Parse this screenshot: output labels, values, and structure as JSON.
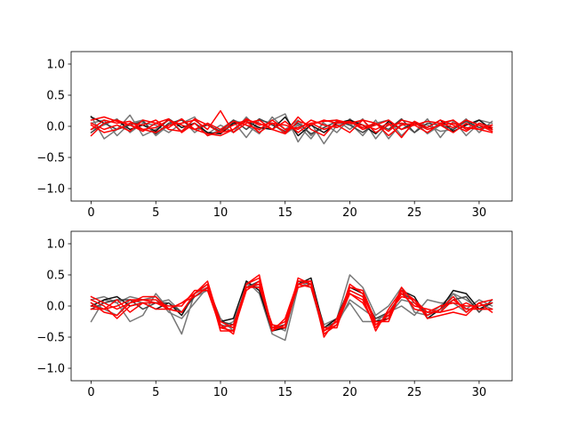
{
  "chart_data": [
    {
      "type": "line",
      "title": "",
      "xlabel": "",
      "ylabel": "",
      "xlim": [
        -1.55,
        32.55
      ],
      "ylim": [
        -1.2,
        1.2
      ],
      "xticks": [
        0,
        5,
        10,
        15,
        20,
        25,
        30
      ],
      "yticks": [
        -1.0,
        -0.5,
        0.0,
        0.5,
        1.0
      ],
      "xtick_labels": [
        "0",
        "5",
        "10",
        "15",
        "20",
        "25",
        "30"
      ],
      "ytick_labels": [
        "−1.0",
        "−0.5",
        "0.0",
        "0.5",
        "1.0"
      ],
      "grid": false,
      "x": [
        0,
        1,
        2,
        3,
        4,
        5,
        6,
        7,
        8,
        9,
        10,
        11,
        12,
        13,
        14,
        15,
        16,
        17,
        18,
        19,
        20,
        21,
        22,
        23,
        24,
        25,
        26,
        27,
        28,
        29,
        30,
        31
      ],
      "series": [
        {
          "color": "#777777",
          "values": [
            0.16,
            -0.2,
            -0.05,
            0.18,
            -0.15,
            -0.05,
            0.1,
            -0.08,
            0.05,
            -0.12,
            0.02,
            -0.1,
            0.15,
            -0.06,
            0.1,
            0.2,
            -0.25,
            0.05,
            -0.28,
            0.02,
            0.05,
            -0.15,
            0.1,
            -0.2,
            0.05,
            -0.1,
            0.12,
            -0.18,
            0.08,
            -0.05,
            0.1,
            0.05
          ]
        },
        {
          "color": "#777777",
          "values": [
            0.05,
            0.1,
            -0.15,
            0.05,
            0.1,
            -0.15,
            0.02,
            0.12,
            -0.1,
            0.05,
            -0.12,
            0.08,
            -0.18,
            0.1,
            0.05,
            -0.12,
            0.02,
            -0.2,
            0.08,
            0.1,
            -0.05,
            0.12,
            -0.2,
            0.05,
            -0.05,
            0.08,
            -0.12,
            0.02,
            0.1,
            -0.15,
            0.05,
            -0.02
          ]
        },
        {
          "color": "#777777",
          "values": [
            -0.05,
            0.02,
            0.12,
            -0.1,
            0.05,
            0.02,
            -0.1,
            0.05,
            0.15,
            -0.15,
            -0.05,
            0.1,
            0.02,
            -0.12,
            0.15,
            -0.05,
            0.1,
            -0.15,
            0.05,
            -0.1,
            0.12,
            -0.05,
            0.05,
            0.1,
            -0.15,
            0.05,
            0.02,
            -0.08,
            -0.05,
            0.12,
            -0.1,
            0.08
          ]
        },
        {
          "color": "#111111",
          "values": [
            0.15,
            0.05,
            0.1,
            -0.05,
            0.02,
            -0.08,
            0.12,
            -0.02,
            0.05,
            -0.1,
            -0.12,
            0.05,
            0.08,
            -0.02,
            -0.05,
            0.15,
            -0.15,
            0.02,
            -0.1,
            0.05,
            0.1,
            0.02,
            -0.12,
            0.08,
            -0.05,
            0.05,
            -0.02,
            0.1,
            -0.08,
            0.02,
            0.1,
            -0.05
          ]
        },
        {
          "color": "#444444",
          "values": [
            -0.1,
            0.05,
            -0.05,
            0.02,
            0.08,
            -0.12,
            0.05,
            0.1,
            -0.05,
            0.02,
            -0.08,
            0.1,
            -0.05,
            0.12,
            0.02,
            -0.08,
            0.05,
            -0.12,
            -0.02,
            0.08,
            0.02,
            -0.1,
            0.05,
            -0.05,
            0.12,
            -0.1,
            0.05,
            0.02,
            -0.05,
            0.08,
            -0.02,
            0.02
          ]
        },
        {
          "color": "#ff0000",
          "values": [
            0.1,
            0.15,
            0.08,
            0.02,
            -0.05,
            -0.1,
            0.02,
            0.05,
            0.1,
            -0.05,
            0.25,
            -0.1,
            0.05,
            0.1,
            -0.05,
            -0.12,
            0.08,
            0.02,
            0.1,
            0.05,
            0.08,
            -0.05,
            0.02,
            0.1,
            -0.05,
            0.02,
            0.08,
            0.05,
            0.1,
            -0.05,
            0.02,
            -0.08
          ]
        },
        {
          "color": "#ff0000",
          "values": [
            -0.15,
            0.05,
            0.1,
            0.02,
            -0.08,
            0.05,
            0.12,
            -0.1,
            0.05,
            -0.15,
            -0.08,
            0.02,
            0.1,
            0.05,
            -0.05,
            0.08,
            -0.1,
            0.05,
            -0.05,
            0.02,
            -0.1,
            0.1,
            0.05,
            -0.15,
            0.02,
            0.05,
            -0.05,
            0.02,
            -0.1,
            0.05,
            -0.05,
            -0.1
          ]
        },
        {
          "color": "#ff0000",
          "values": [
            0.05,
            -0.05,
            0.02,
            -0.08,
            0.1,
            0.05,
            -0.02,
            0.12,
            -0.05,
            -0.12,
            -0.15,
            -0.05,
            0.12,
            0.02,
            0.05,
            -0.1,
            0.15,
            -0.05,
            -0.15,
            0.08,
            0.05,
            0.02,
            -0.05,
            0.05,
            -0.18,
            0.08,
            -0.02,
            0.1,
            0.02,
            -0.08,
            0.05,
            -0.02
          ]
        },
        {
          "color": "#ff0000",
          "values": [
            -0.05,
            0.1,
            0.05,
            0.08,
            -0.05,
            -0.02,
            0.1,
            0.02,
            -0.05,
            0.05,
            -0.05,
            0.08,
            0.02,
            -0.05,
            0.1,
            -0.05,
            -0.02,
            0.05,
            0.08,
            0.1,
            0.05,
            0.1,
            -0.1,
            0.02,
            0.05,
            0.02,
            -0.1,
            0.05,
            -0.02,
            0.1,
            0.02,
            -0.05
          ]
        },
        {
          "color": "#ff0000",
          "values": [
            0.02,
            -0.1,
            -0.05,
            0.05,
            0.02,
            0.1,
            -0.05,
            -0.08,
            0.12,
            0.02,
            -0.1,
            -0.05,
            0.08,
            -0.1,
            0.05,
            0.02,
            -0.05,
            0.1,
            0.02,
            -0.02,
            0.08,
            -0.02,
            0.05,
            -0.08,
            0.1,
            0.05,
            -0.05,
            0.02,
            0.05,
            -0.02,
            -0.05,
            0.02
          ]
        }
      ]
    },
    {
      "type": "line",
      "title": "",
      "xlabel": "",
      "ylabel": "",
      "xlim": [
        -1.55,
        32.55
      ],
      "ylim": [
        -1.2,
        1.2
      ],
      "xticks": [
        0,
        5,
        10,
        15,
        20,
        25,
        30
      ],
      "yticks": [
        -1.0,
        -0.5,
        0.0,
        0.5,
        1.0
      ],
      "xtick_labels": [
        "0",
        "5",
        "10",
        "15",
        "20",
        "25",
        "30"
      ],
      "ytick_labels": [
        "−1.0",
        "−0.5",
        "0.0",
        "0.5",
        "1.0"
      ],
      "grid": false,
      "x": [
        0,
        1,
        2,
        3,
        4,
        5,
        6,
        7,
        8,
        9,
        10,
        11,
        12,
        13,
        14,
        15,
        16,
        17,
        18,
        19,
        20,
        21,
        22,
        23,
        24,
        25,
        26,
        27,
        28,
        29,
        30,
        31
      ],
      "series": [
        {
          "color": "#777777",
          "values": [
            -0.25,
            0.1,
            0.05,
            -0.25,
            -0.15,
            0.2,
            -0.05,
            -0.45,
            0.2,
            0.3,
            -0.2,
            -0.4,
            0.4,
            0.2,
            -0.45,
            -0.55,
            0.3,
            0.35,
            -0.3,
            -0.2,
            0.5,
            0.3,
            -0.15,
            0.0,
            0.3,
            -0.1,
            -0.15,
            0.0,
            0.2,
            0.1,
            -0.05,
            0.05
          ]
        },
        {
          "color": "#777777",
          "values": [
            0.1,
            0.15,
            0.05,
            0.15,
            0.1,
            0.15,
            -0.1,
            -0.2,
            0.05,
            0.3,
            -0.35,
            -0.25,
            0.3,
            0.35,
            -0.4,
            -0.3,
            0.4,
            0.3,
            -0.45,
            -0.3,
            0.1,
            -0.05,
            -0.2,
            -0.15,
            0.1,
            0.05,
            -0.1,
            -0.1,
            0.2,
            -0.05,
            0.1,
            0.0
          ]
        },
        {
          "color": "#777777",
          "values": [
            0.05,
            -0.05,
            -0.15,
            0.1,
            0.05,
            0.05,
            0.1,
            -0.1,
            0.15,
            0.25,
            -0.3,
            -0.35,
            0.35,
            0.3,
            -0.3,
            -0.4,
            0.35,
            0.4,
            -0.4,
            -0.25,
            0.05,
            -0.25,
            -0.25,
            -0.1,
            0.0,
            -0.15,
            0.1,
            0.05,
            0.05,
            -0.1,
            0.05,
            -0.05
          ]
        },
        {
          "color": "#111111",
          "values": [
            0.0,
            0.1,
            0.15,
            0.0,
            0.05,
            -0.05,
            0.05,
            -0.15,
            0.2,
            0.35,
            -0.25,
            -0.2,
            0.4,
            0.25,
            -0.4,
            -0.35,
            0.35,
            0.45,
            -0.35,
            -0.2,
            0.3,
            0.2,
            -0.25,
            -0.2,
            0.25,
            0.15,
            -0.2,
            -0.05,
            0.25,
            0.2,
            -0.05,
            0.05
          ]
        },
        {
          "color": "#444444",
          "values": [
            -0.05,
            0.05,
            0.1,
            0.1,
            -0.05,
            0.05,
            0.05,
            -0.1,
            0.15,
            0.3,
            -0.25,
            -0.3,
            0.3,
            0.4,
            -0.35,
            -0.3,
            0.4,
            0.35,
            -0.35,
            -0.25,
            0.25,
            0.15,
            -0.2,
            -0.1,
            0.2,
            0.1,
            -0.15,
            -0.05,
            0.1,
            0.15,
            -0.1,
            0.1
          ]
        },
        {
          "color": "#ff0000",
          "values": [
            0.15,
            0.05,
            -0.05,
            0.05,
            0.1,
            0.1,
            -0.05,
            -0.1,
            0.2,
            0.35,
            -0.4,
            -0.4,
            0.35,
            0.5,
            -0.4,
            -0.2,
            0.4,
            0.4,
            -0.5,
            -0.2,
            0.25,
            0.15,
            -0.4,
            -0.05,
            0.25,
            -0.05,
            -0.1,
            -0.1,
            0.1,
            -0.05,
            -0.05,
            -0.05
          ]
        },
        {
          "color": "#ff0000",
          "values": [
            0.05,
            -0.1,
            -0.15,
            0.05,
            0.15,
            0.15,
            -0.05,
            -0.1,
            0.2,
            0.4,
            -0.3,
            -0.45,
            0.35,
            0.45,
            -0.35,
            -0.35,
            0.45,
            0.35,
            -0.45,
            -0.3,
            0.35,
            0.2,
            -0.3,
            -0.2,
            0.3,
            0.05,
            -0.15,
            -0.05,
            0.15,
            -0.1,
            0.05,
            0.1
          ]
        },
        {
          "color": "#ff0000",
          "values": [
            0.1,
            0.0,
            -0.2,
            0.0,
            0.05,
            0.05,
            0.0,
            0.0,
            0.25,
            0.25,
            -0.35,
            -0.3,
            0.3,
            0.3,
            -0.3,
            -0.35,
            0.35,
            0.3,
            -0.4,
            -0.25,
            0.2,
            0.05,
            -0.3,
            -0.15,
            0.2,
            0.0,
            -0.05,
            -0.1,
            -0.05,
            0.05,
            -0.05,
            -0.05
          ]
        },
        {
          "color": "#ff0000",
          "values": [
            -0.05,
            -0.05,
            0.0,
            0.1,
            0.1,
            0.05,
            -0.05,
            0.05,
            0.15,
            0.3,
            -0.35,
            -0.4,
            0.25,
            0.4,
            -0.35,
            -0.25,
            0.3,
            0.35,
            -0.35,
            -0.35,
            0.3,
            0.25,
            -0.25,
            -0.25,
            0.25,
            0.1,
            -0.2,
            -0.15,
            -0.1,
            -0.15,
            0.05,
            -0.1
          ]
        },
        {
          "color": "#ff0000",
          "values": [
            0.0,
            -0.05,
            0.1,
            -0.1,
            0.05,
            -0.05,
            -0.05,
            0.05,
            0.2,
            0.35,
            -0.25,
            -0.35,
            0.3,
            0.35,
            -0.4,
            -0.3,
            0.35,
            0.4,
            -0.4,
            -0.3,
            0.2,
            0.1,
            -0.35,
            -0.1,
            0.15,
            0.1,
            -0.1,
            0.0,
            0.05,
            0.0,
            0.0,
            0.05
          ]
        }
      ]
    }
  ]
}
